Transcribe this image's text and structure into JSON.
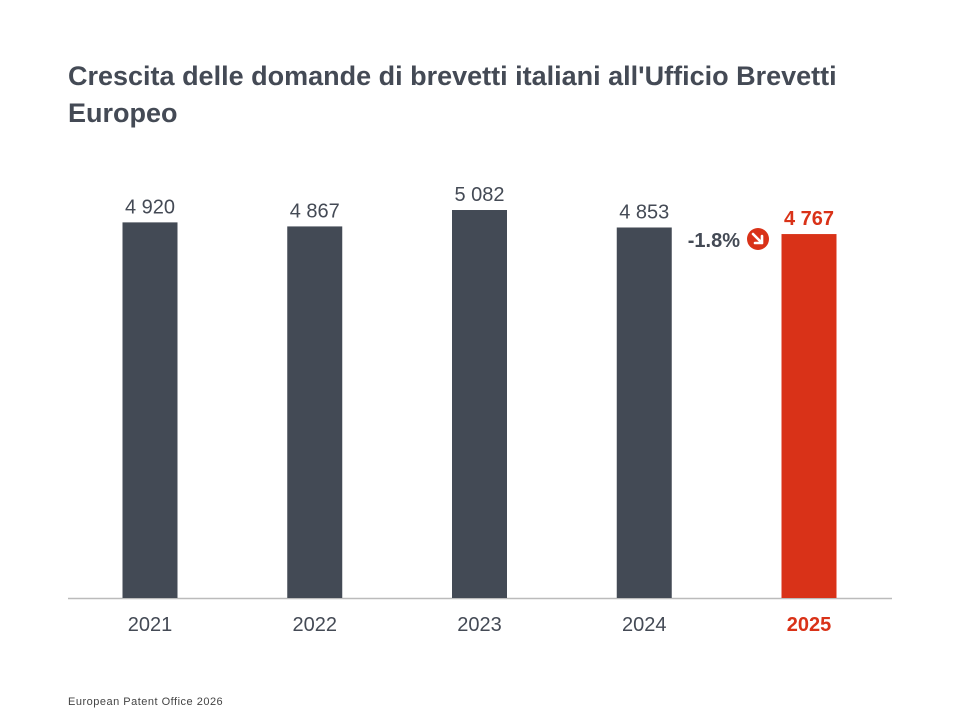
{
  "chart_data": {
    "type": "bar",
    "title": "Crescita delle domande di brevetti italiani all'Ufficio Brevetti Europeo",
    "categories": [
      "2021",
      "2022",
      "2023",
      "2024",
      "2025"
    ],
    "values": [
      4920,
      4867,
      5082,
      4853,
      4767
    ],
    "value_labels": [
      "4 920",
      "4 867",
      "5 082",
      "4 853",
      "4 767"
    ],
    "highlight_index": 4,
    "annotation": {
      "text": "-1.8%",
      "icon": "arrow-down-right-circle-icon"
    },
    "ylim": [
      0,
      5200
    ],
    "grid": false,
    "colors": {
      "bar": "#434a55",
      "highlight": "#d93218",
      "axis": "#bbbbbb",
      "text": "#444a55"
    }
  },
  "footer": "European Patent Office 2026"
}
